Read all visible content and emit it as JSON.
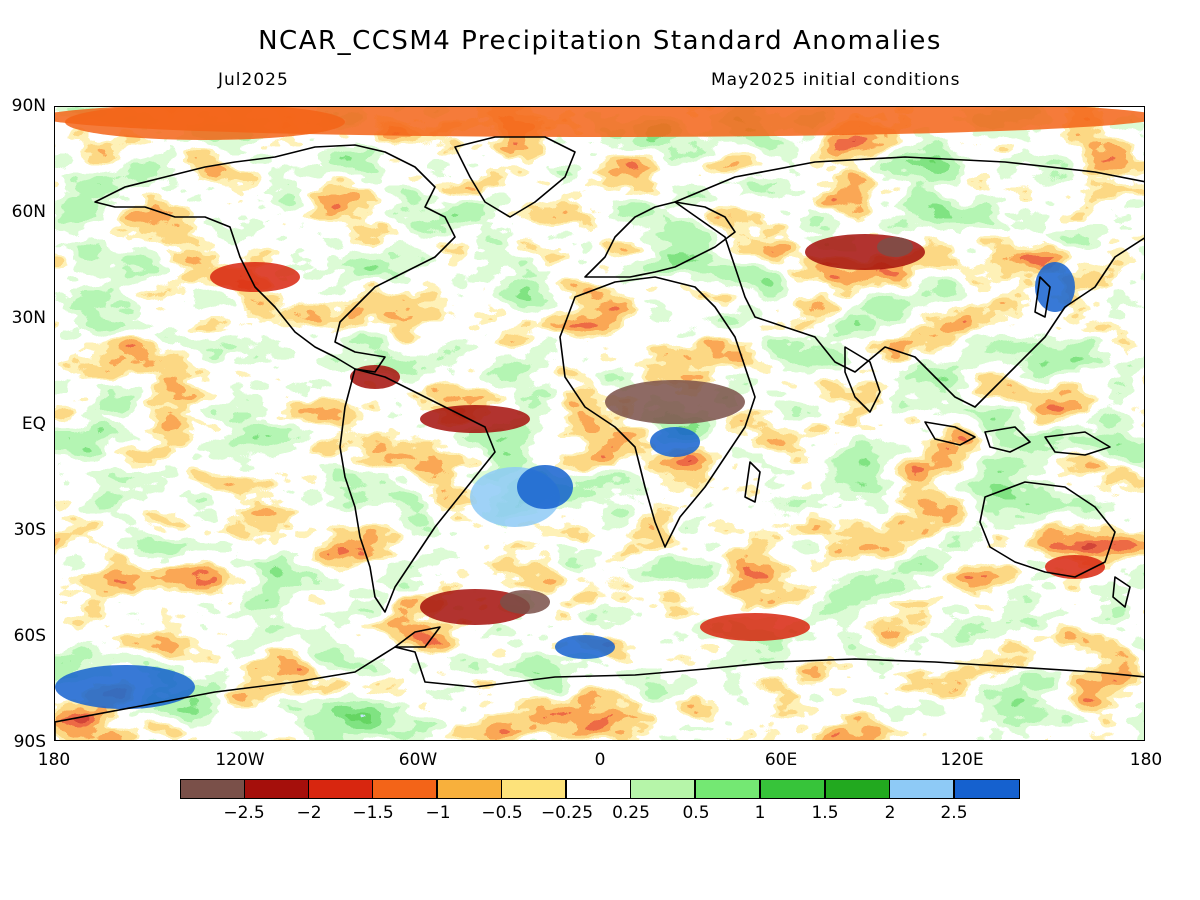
{
  "title": "NCAR_CCSM4 Precipitation Standard Anomalies",
  "valid_month": "Jul2025",
  "init_label": "May2025 initial conditions",
  "lat_labels": [
    "90N",
    "60N",
    "30N",
    "EQ",
    "30S",
    "60S",
    "90S"
  ],
  "lon_labels": [
    "180",
    "120W",
    "60W",
    "0",
    "60E",
    "120E",
    "180"
  ],
  "colorbar": {
    "colors": [
      "#7a5049",
      "#a50f0b",
      "#d8260f",
      "#f36418",
      "#f8b03c",
      "#fde27a",
      "#ffffff",
      "#b6f5a9",
      "#74e873",
      "#37c43a",
      "#22a91f",
      "#8ecaf6",
      "#1561cf"
    ],
    "labels": [
      "−2.5",
      "−2",
      "−1.5",
      "−1",
      "−0.5",
      "−0.25",
      "0.25",
      "0.5",
      "1",
      "1.5",
      "2",
      "2.5"
    ]
  },
  "map_data": {
    "type": "global precipitation standardized anomaly map",
    "variable": "Precipitation Standard Anomalies",
    "model": "NCAR_CCSM4",
    "lon_range": [
      -180,
      180
    ],
    "lat_range": [
      -90,
      90
    ]
  }
}
